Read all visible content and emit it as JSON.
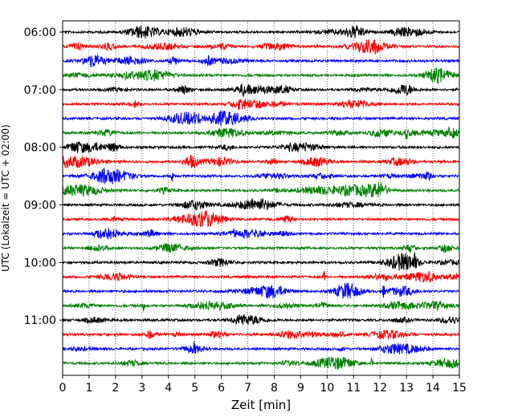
{
  "chart_data": {
    "type": "line",
    "title": "",
    "xlabel": "Zeit  [min]",
    "ylabel": "UTC (Lokalzeit = UTC + 02:00)",
    "xlim": [
      0,
      15
    ],
    "x_ticks": [
      0,
      1,
      2,
      3,
      4,
      5,
      6,
      7,
      8,
      9,
      10,
      11,
      12,
      13,
      14,
      15
    ],
    "y_tick_labels": [
      "06:00",
      "07:00",
      "08:00",
      "09:00",
      "10:00",
      "11:00"
    ],
    "grid": "vertical dotted lines at each minute",
    "trace_interval_minutes": 15,
    "trace_colors_cycle": [
      "#000000",
      "#ff0000",
      "#0000ff",
      "#008000"
    ],
    "traces": [
      {
        "start": "06:00",
        "color": "#000000"
      },
      {
        "start": "06:15",
        "color": "#ff0000"
      },
      {
        "start": "06:30",
        "color": "#0000ff"
      },
      {
        "start": "06:45",
        "color": "#008000"
      },
      {
        "start": "07:00",
        "color": "#000000"
      },
      {
        "start": "07:15",
        "color": "#ff0000"
      },
      {
        "start": "07:30",
        "color": "#0000ff"
      },
      {
        "start": "07:45",
        "color": "#008000"
      },
      {
        "start": "08:00",
        "color": "#000000"
      },
      {
        "start": "08:15",
        "color": "#ff0000"
      },
      {
        "start": "08:30",
        "color": "#0000ff"
      },
      {
        "start": "08:45",
        "color": "#008000"
      },
      {
        "start": "09:00",
        "color": "#000000"
      },
      {
        "start": "09:15",
        "color": "#ff0000"
      },
      {
        "start": "09:30",
        "color": "#0000ff"
      },
      {
        "start": "09:45",
        "color": "#008000"
      },
      {
        "start": "10:00",
        "color": "#000000"
      },
      {
        "start": "10:15",
        "color": "#ff0000"
      },
      {
        "start": "10:30",
        "color": "#0000ff"
      },
      {
        "start": "10:45",
        "color": "#008000"
      },
      {
        "start": "11:00",
        "color": "#000000"
      },
      {
        "start": "11:15",
        "color": "#ff0000"
      },
      {
        "start": "11:30",
        "color": "#0000ff"
      },
      {
        "start": "11:45",
        "color": "#008000"
      }
    ]
  }
}
